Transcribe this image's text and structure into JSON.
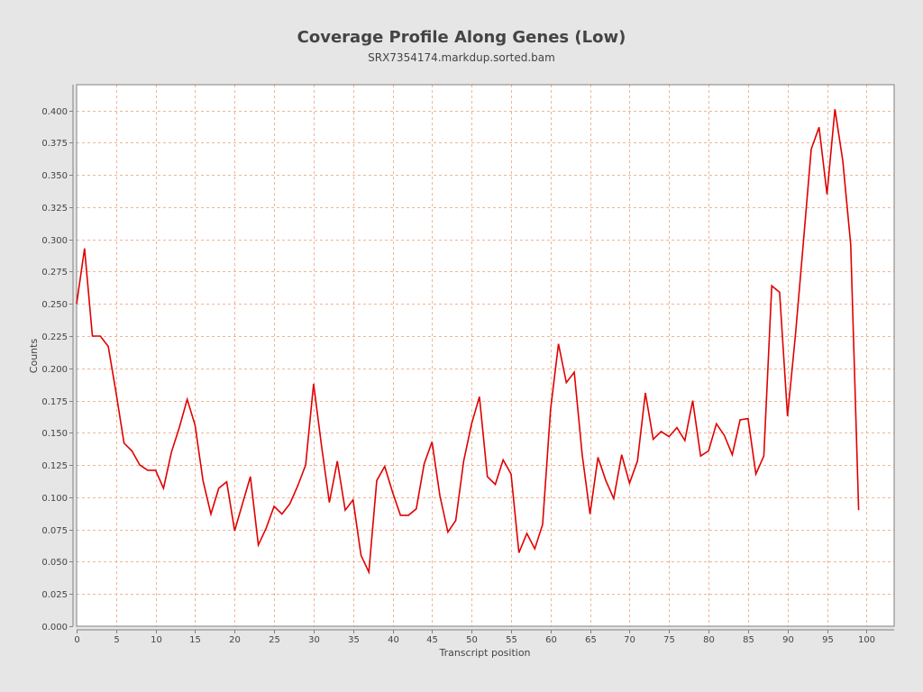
{
  "chart_data": {
    "type": "line",
    "title": "Coverage Profile Along Genes (Low)",
    "subtitle": "SRX7354174.markdup.sorted.bam",
    "xlabel": "Transcript position",
    "ylabel": "Counts",
    "xlim": [
      0,
      103.5
    ],
    "ylim": [
      0,
      0.42
    ],
    "xticks": [
      0,
      5,
      10,
      15,
      20,
      25,
      30,
      35,
      40,
      45,
      50,
      55,
      60,
      65,
      70,
      75,
      80,
      85,
      90,
      95,
      100
    ],
    "yticks": [
      "0.000",
      "0.025",
      "0.050",
      "0.075",
      "0.100",
      "0.125",
      "0.150",
      "0.175",
      "0.200",
      "0.225",
      "0.250",
      "0.275",
      "0.300",
      "0.325",
      "0.350",
      "0.375",
      "0.400"
    ],
    "grid": true,
    "colors": {
      "line": "#e00000",
      "grid": "#f0b496",
      "plot_bg": "#ffffff",
      "page_bg": "#e6e6e6"
    },
    "series": [
      {
        "x": [
          0,
          1,
          2,
          3,
          4,
          5,
          6,
          7,
          8,
          9,
          10,
          11,
          12,
          13,
          14,
          15,
          16,
          17,
          18,
          19,
          20,
          21,
          22,
          23,
          24,
          25,
          26,
          27,
          28,
          29,
          30,
          31,
          32,
          33,
          34,
          35,
          36,
          37,
          38,
          39,
          40,
          41,
          42,
          43,
          44,
          45,
          46,
          47,
          48,
          49,
          50,
          51,
          52,
          53,
          54,
          55,
          56,
          57,
          58,
          59,
          60,
          61,
          62,
          63,
          64,
          65,
          66,
          67,
          68,
          69,
          70,
          71,
          72,
          73,
          74,
          75,
          76,
          77,
          78,
          79,
          80,
          81,
          82,
          83,
          84,
          85,
          86,
          87,
          88,
          89,
          90,
          91,
          92,
          93,
          94,
          95,
          96,
          97,
          98,
          99
        ],
        "values": [
          0.25,
          0.293,
          0.225,
          0.225,
          0.217,
          0.181,
          0.142,
          0.136,
          0.125,
          0.121,
          0.121,
          0.107,
          0.135,
          0.154,
          0.176,
          0.156,
          0.113,
          0.087,
          0.107,
          0.112,
          0.074,
          0.095,
          0.116,
          0.063,
          0.076,
          0.093,
          0.087,
          0.095,
          0.109,
          0.125,
          0.188,
          0.14,
          0.096,
          0.128,
          0.09,
          0.098,
          0.055,
          0.042,
          0.113,
          0.124,
          0.104,
          0.086,
          0.086,
          0.091,
          0.126,
          0.143,
          0.101,
          0.073,
          0.082,
          0.128,
          0.157,
          0.178,
          0.116,
          0.11,
          0.129,
          0.118,
          0.057,
          0.072,
          0.06,
          0.079,
          0.168,
          0.219,
          0.189,
          0.197,
          0.133,
          0.087,
          0.131,
          0.113,
          0.099,
          0.133,
          0.111,
          0.128,
          0.181,
          0.145,
          0.151,
          0.147,
          0.154,
          0.144,
          0.175,
          0.132,
          0.136,
          0.157,
          0.148,
          0.133,
          0.16,
          0.161,
          0.118,
          0.132,
          0.264,
          0.259,
          0.163,
          0.226,
          0.297,
          0.37,
          0.387,
          0.335,
          0.401,
          0.361,
          0.296,
          0.09
        ]
      }
    ]
  }
}
